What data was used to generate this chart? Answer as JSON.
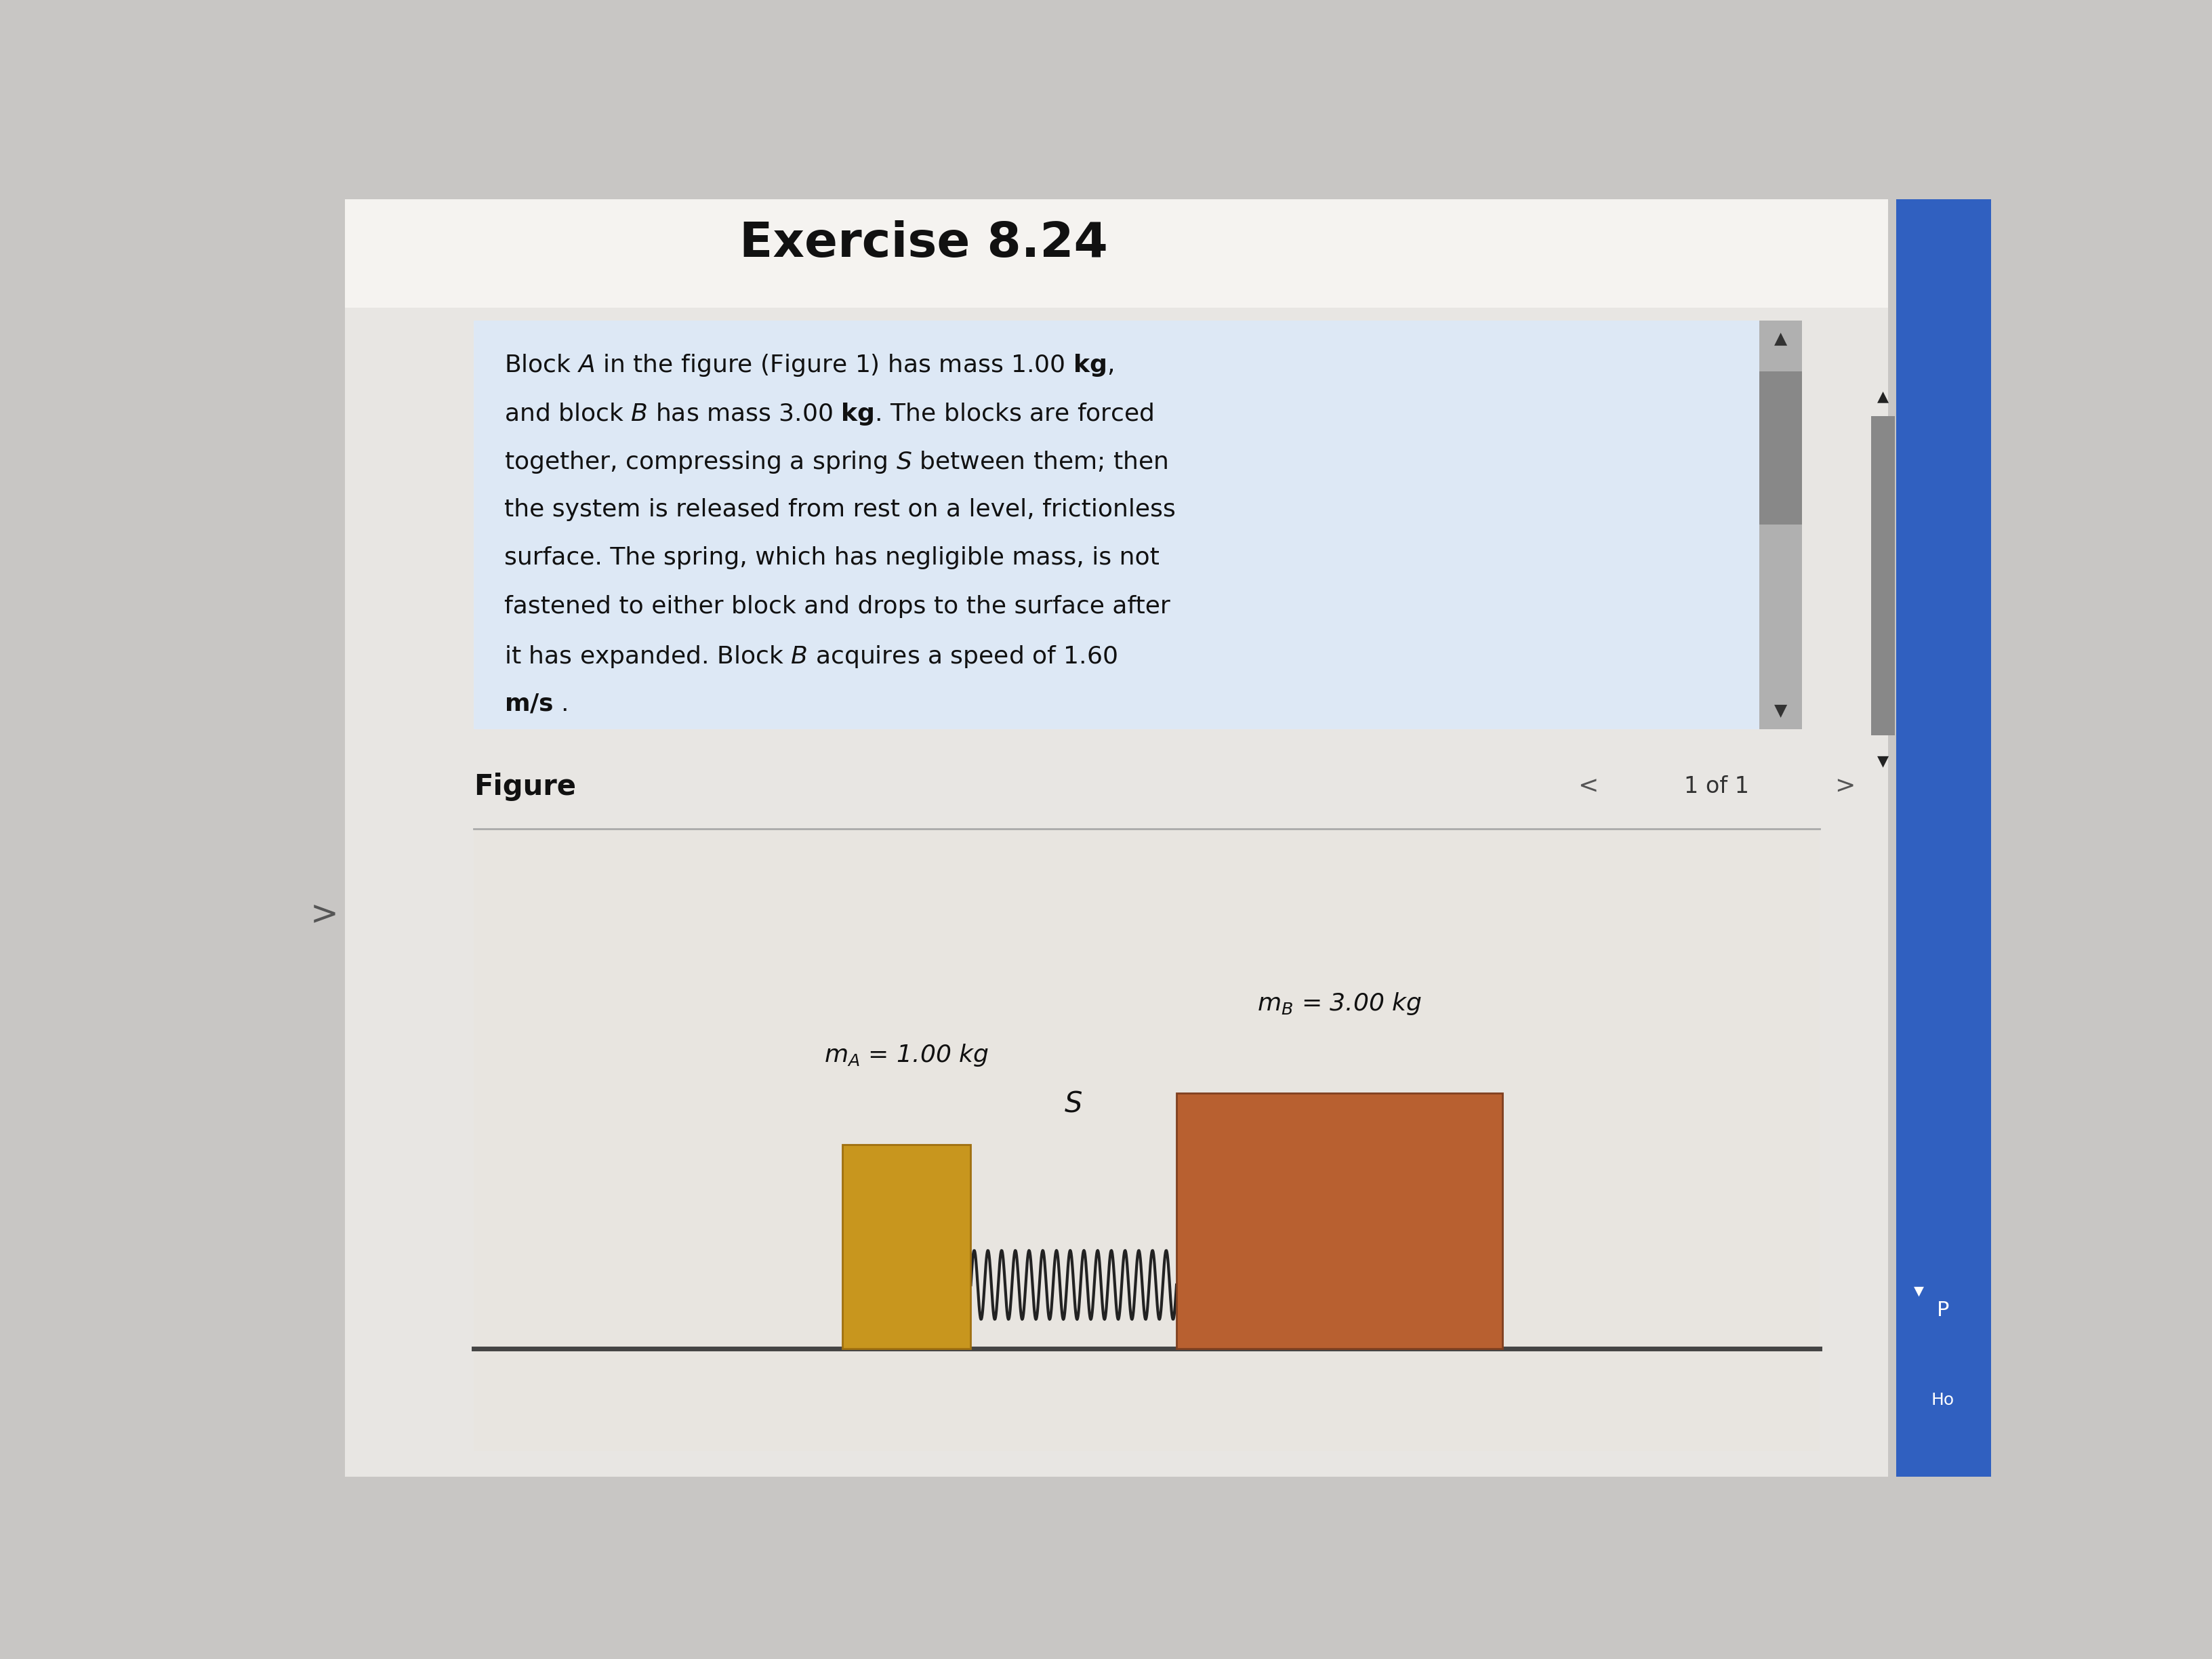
{
  "bg_color": "#c8c6c4",
  "page_bg": "#f0eeec",
  "title": "Exercise 8.24",
  "title_fontsize": 52,
  "text_box_color": "#dde8f5",
  "figure_label": "Figure",
  "figure_nav": "1 of 1",
  "block_A_color": "#c8961e",
  "block_B_color": "#b86030",
  "floor_color": "#444444",
  "spring_color": "#222222",
  "label_A": "$m_A$ = 1.00 kg",
  "label_B": "$m_B$ = 3.00 kg",
  "spring_label": "S",
  "scrollbar_bg": "#b0b0b0",
  "scrollbar_handle": "#888888",
  "sidebar_blue": "#3060c0",
  "nav_circle_color": "#c0c0c0",
  "separator_color": "#aaaaaa",
  "text_color": "#111111",
  "figure_1_link_color": "#2255cc"
}
